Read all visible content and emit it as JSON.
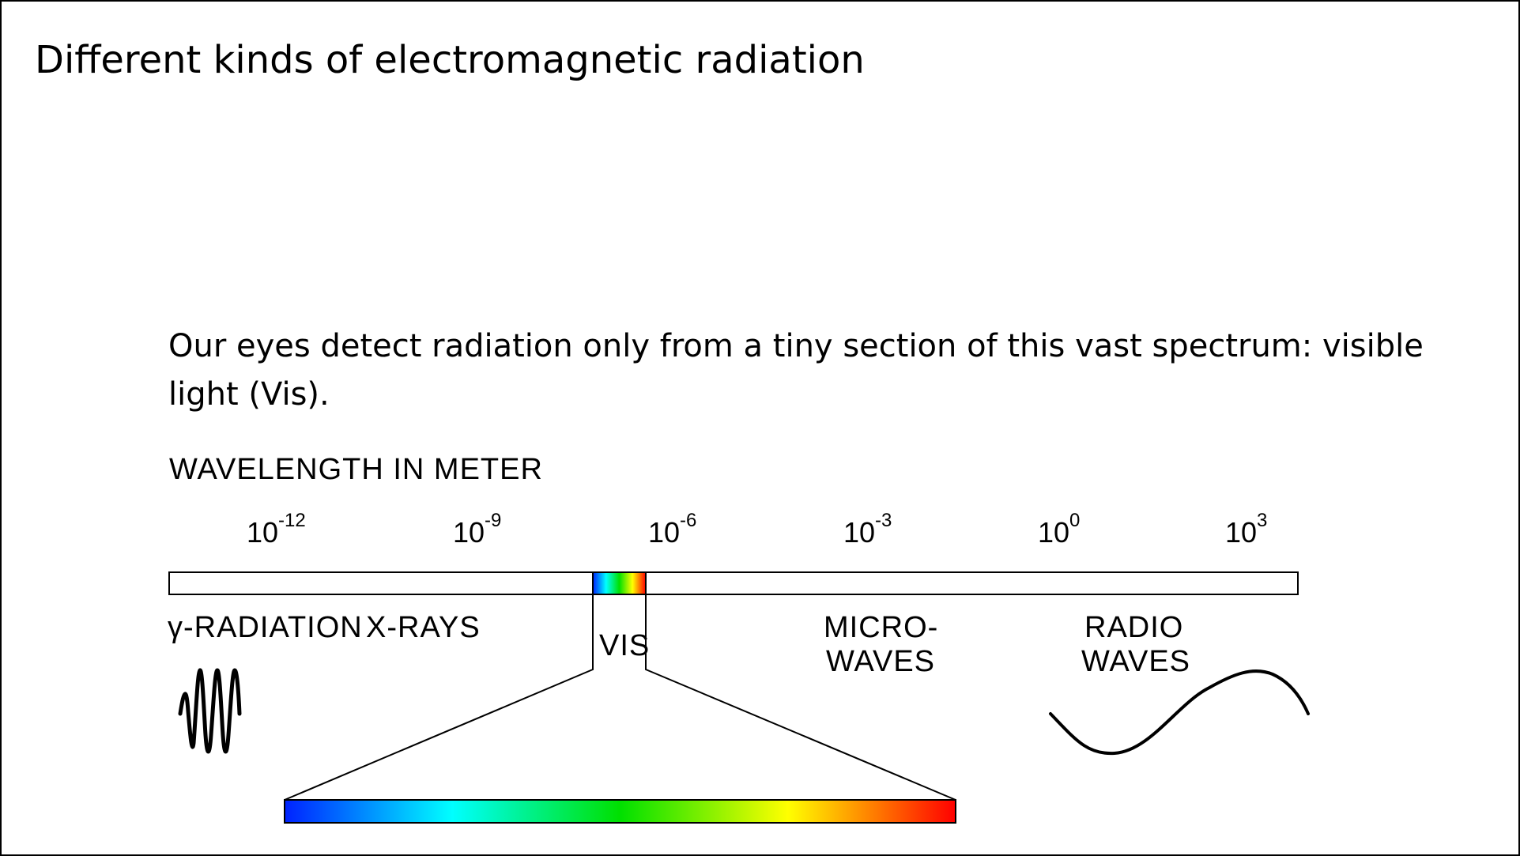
{
  "title": "Different kinds of electromagnetic radiation",
  "body_text": "Our eyes detect radiation only from a tiny section of this vast spectrum: visible light (Vis).",
  "axis_label": "WAVELENGTH IN METER",
  "tick_base": "10",
  "ticks": [
    {
      "exp": "-12"
    },
    {
      "exp": "-9"
    },
    {
      "exp": "-6"
    },
    {
      "exp": "-3"
    },
    {
      "exp": "0"
    },
    {
      "exp": "3"
    }
  ],
  "regions": {
    "gamma": "γ-RADIATION",
    "xrays": "X-RAYS",
    "vis": "VIS",
    "micro_line1": "MICRO-",
    "micro_line2": "WAVES",
    "radio_line1": "RADIO",
    "radio_line2": "WAVES"
  },
  "icons": {
    "short_wave": "short-wavelength-wave-icon",
    "long_wave": "long-wavelength-wave-icon"
  },
  "colors": {
    "spectrum": [
      "#0000ff",
      "#00ffff",
      "#00ff00",
      "#ffff00",
      "#ff0000"
    ],
    "outline": "#000000"
  }
}
